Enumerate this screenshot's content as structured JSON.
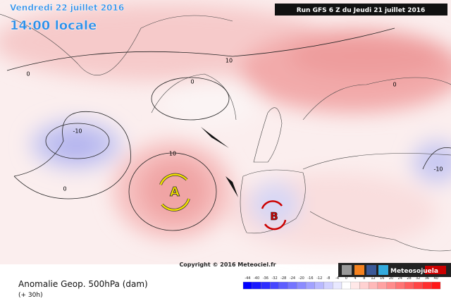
{
  "header": {
    "date": "Vendredi 22 juillet 2016",
    "time": "14:00 locale",
    "run": "Run GFS 6 Z du Jeudi 21 juillet 2016"
  },
  "map": {
    "contour_labels": [
      "10",
      "0",
      "-10",
      "10",
      "0",
      "-10",
      "0",
      "0"
    ],
    "centers": [
      "A",
      "B"
    ],
    "copyright": "Copyright © 2016 Meteociel.fr"
  },
  "footer": {
    "title": "Anomalie Geop. 500hPa (dam)",
    "lead": "(+ 30h)",
    "brand": "Meteosojuela"
  },
  "legend": {
    "ticks": [
      "-44",
      "-40",
      "-36",
      "-32",
      "-28",
      "-24",
      "-20",
      "-16",
      "-12",
      "-8",
      "-4",
      "0",
      "4",
      "8",
      "12",
      "16",
      "20",
      "24",
      "28",
      "32",
      "36",
      "40"
    ]
  }
}
